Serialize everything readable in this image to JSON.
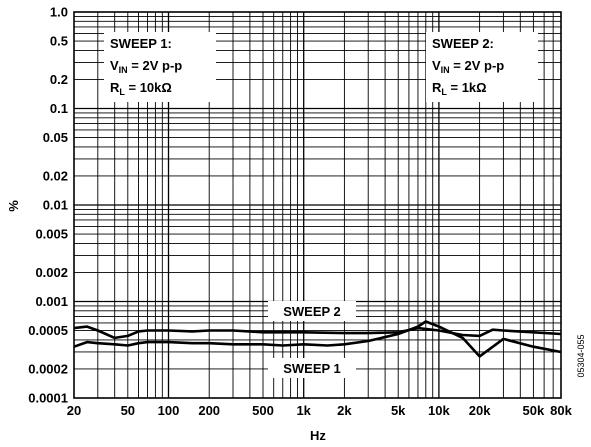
{
  "chart_data": {
    "type": "line",
    "xlabel": "Hz",
    "ylabel": "%",
    "x_scale": "log",
    "y_scale": "log",
    "xlim": [
      20,
      80000
    ],
    "ylim": [
      0.0001,
      1.0
    ],
    "grid": true,
    "x_ticks": [
      {
        "value": 20,
        "label": "20"
      },
      {
        "value": 50,
        "label": "50"
      },
      {
        "value": 100,
        "label": "100"
      },
      {
        "value": 200,
        "label": "200"
      },
      {
        "value": 500,
        "label": "500"
      },
      {
        "value": 1000,
        "label": "1k"
      },
      {
        "value": 2000,
        "label": "2k"
      },
      {
        "value": 5000,
        "label": "5k"
      },
      {
        "value": 10000,
        "label": "10k"
      },
      {
        "value": 20000,
        "label": "20k"
      },
      {
        "value": 50000,
        "label": "50k"
      },
      {
        "value": 80000,
        "label": "80k"
      }
    ],
    "y_ticks": [
      {
        "value": 1.0,
        "label": "1.0"
      },
      {
        "value": 0.5,
        "label": "0.5"
      },
      {
        "value": 0.2,
        "label": "0.2"
      },
      {
        "value": 0.1,
        "label": "0.1"
      },
      {
        "value": 0.05,
        "label": "0.05"
      },
      {
        "value": 0.02,
        "label": "0.02"
      },
      {
        "value": 0.01,
        "label": "0.01"
      },
      {
        "value": 0.005,
        "label": "0.005"
      },
      {
        "value": 0.002,
        "label": "0.002"
      },
      {
        "value": 0.001,
        "label": "0.001"
      },
      {
        "value": 0.0005,
        "label": "0.0005"
      },
      {
        "value": 0.0002,
        "label": "0.0002"
      },
      {
        "value": 0.0001,
        "label": "0.0001"
      }
    ],
    "series": [
      {
        "name": "SWEEP 1",
        "x": [
          20,
          25,
          30,
          40,
          50,
          60,
          70,
          100,
          150,
          200,
          300,
          500,
          700,
          1000,
          1500,
          2000,
          3000,
          5000,
          7000,
          8000,
          10000,
          15000,
          20000,
          30000,
          50000,
          80000
        ],
        "y": [
          0.00034,
          0.00038,
          0.00037,
          0.00036,
          0.00035,
          0.00037,
          0.00038,
          0.00038,
          0.00037,
          0.00037,
          0.00036,
          0.00036,
          0.00035,
          0.00036,
          0.00035,
          0.00036,
          0.00039,
          0.00046,
          0.00055,
          0.00062,
          0.00055,
          0.00042,
          0.00027,
          0.00041,
          0.00034,
          0.0003
        ]
      },
      {
        "name": "SWEEP 2",
        "x": [
          20,
          25,
          30,
          40,
          50,
          60,
          70,
          100,
          150,
          200,
          300,
          500,
          700,
          1000,
          2000,
          3000,
          5000,
          7000,
          10000,
          15000,
          20000,
          25000,
          30000,
          50000,
          80000
        ],
        "y": [
          0.00053,
          0.00055,
          0.0005,
          0.00042,
          0.00044,
          0.00049,
          0.0005,
          0.0005,
          0.00049,
          0.0005,
          0.0005,
          0.00048,
          0.00048,
          0.00048,
          0.00047,
          0.00047,
          0.00048,
          0.00053,
          0.0005,
          0.00045,
          0.00044,
          0.00051,
          0.0005,
          0.00048,
          0.00046
        ]
      }
    ],
    "annotations": {
      "sweep1_box": {
        "title": "SWEEP 1:",
        "vin_label": "V",
        "vin_sub": "IN",
        "vin_value": " = 2V p-p",
        "rl_label": "R",
        "rl_sub": "L",
        "rl_value": " = 10kΩ"
      },
      "sweep2_box": {
        "title": "SWEEP 2:",
        "vin_label": "V",
        "vin_sub": "IN",
        "vin_value": " = 2V p-p",
        "rl_label": "R",
        "rl_sub": "L",
        "rl_value": " = 1kΩ"
      },
      "sweep1_label": "SWEEP 1",
      "sweep2_label": "SWEEP 2"
    },
    "figure_id": "05304-055"
  }
}
